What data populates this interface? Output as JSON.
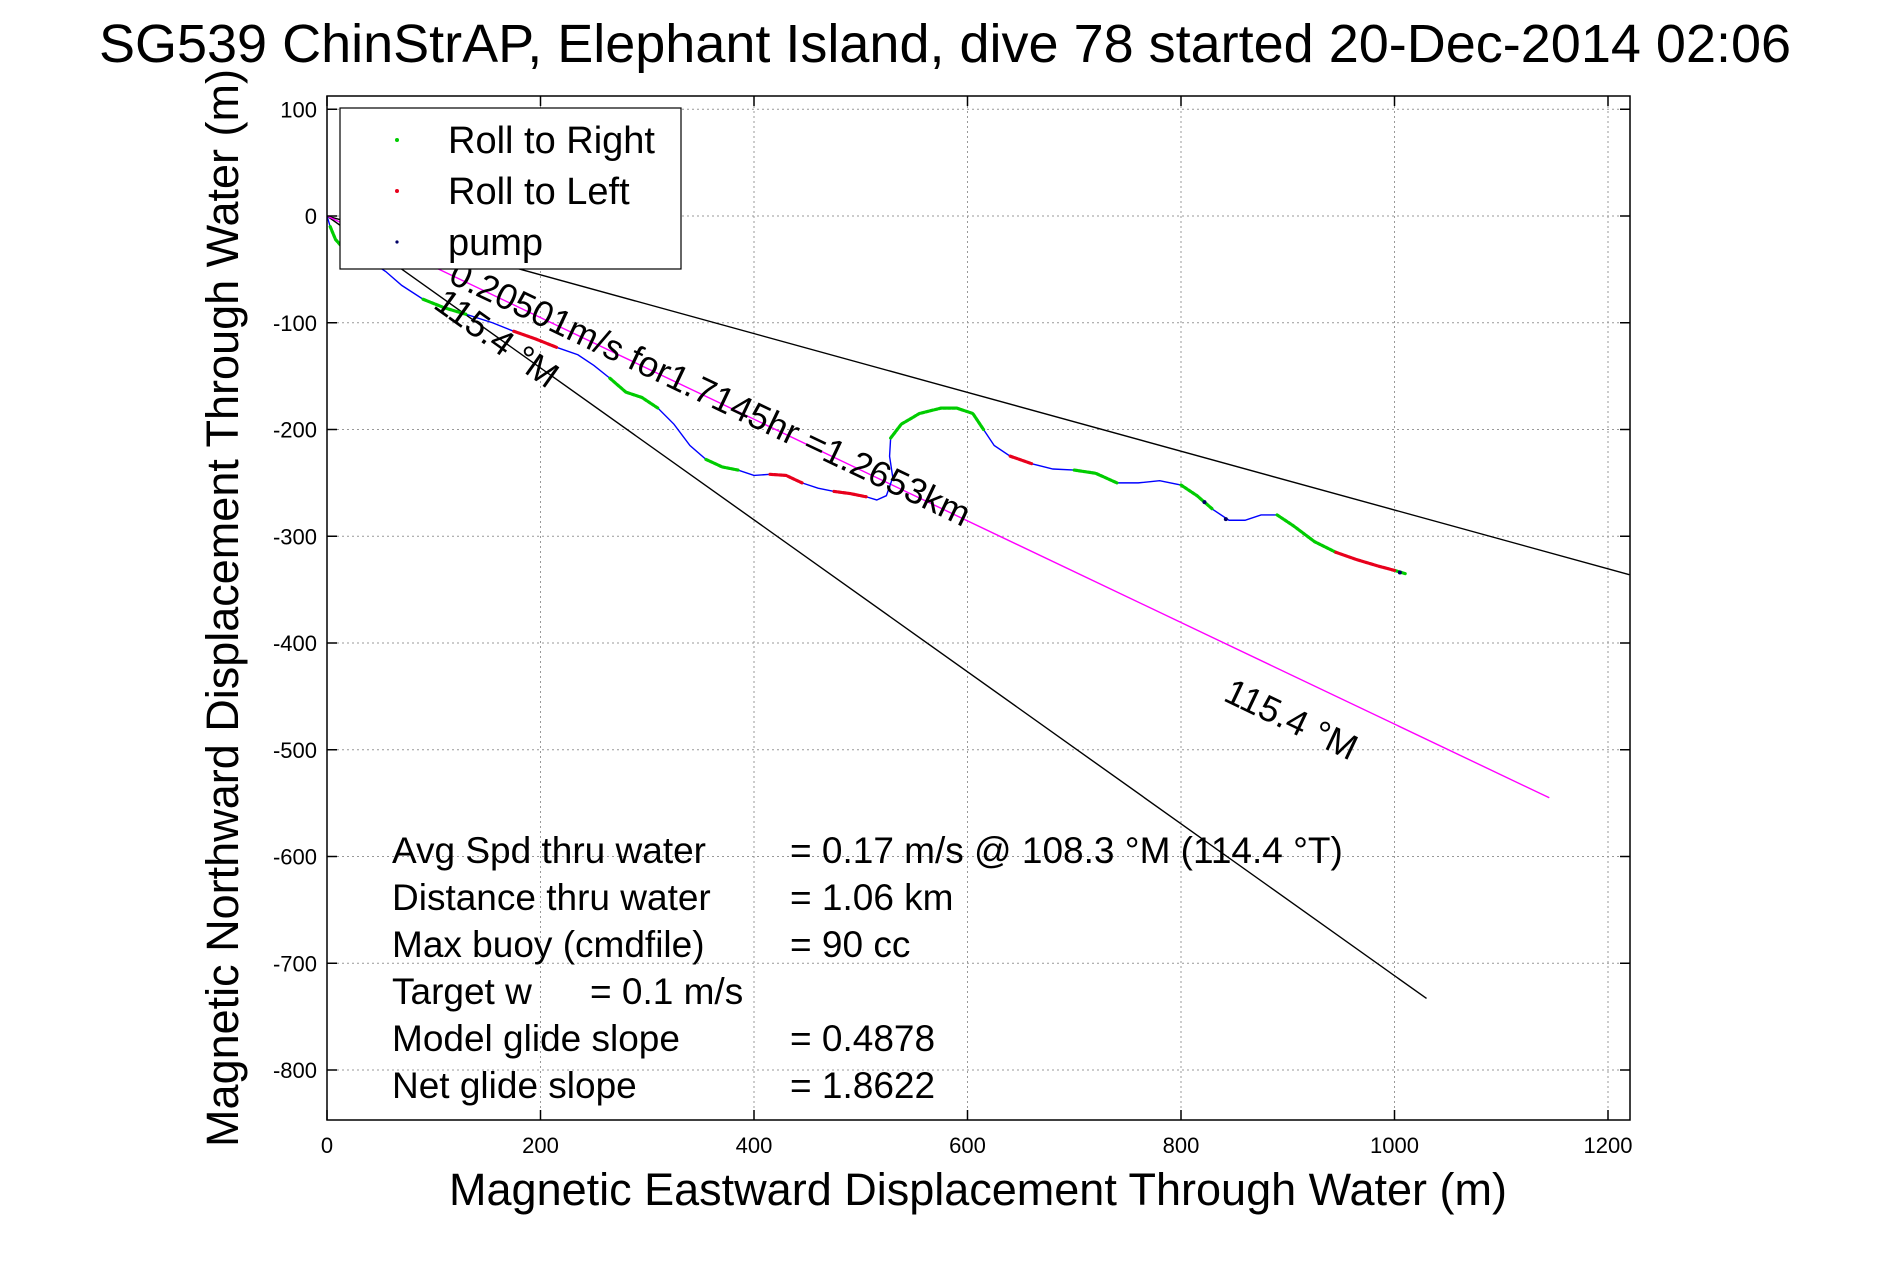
{
  "chart_data": {
    "type": "line",
    "title": "SG539 ChinStrAP, Elephant Island, dive 78 started 20-Dec-2014 02:06",
    "xlabel": "Magnetic Eastward Displacement Through Water (m)",
    "ylabel": "Magnetic Northward Displacement Through Water (m)",
    "xlim": [
      0,
      1220
    ],
    "ylim": [
      -840,
      100
    ],
    "xticks": [
      0,
      200,
      400,
      600,
      800,
      1000,
      1200
    ],
    "yticks": [
      100,
      0,
      -100,
      -200,
      -300,
      -400,
      -500,
      -600,
      -700,
      -800
    ],
    "grid": true,
    "legend_position": "top-left",
    "legend": [
      {
        "label": "Roll to Right",
        "color": "#00cc00"
      },
      {
        "label": "Roll to Left",
        "color": "#e8001c"
      },
      {
        "label": "pump",
        "color": "#000066"
      }
    ],
    "track": {
      "color": "#0000ff",
      "points": [
        [
          0,
          0
        ],
        [
          3,
          -10
        ],
        [
          8,
          -22
        ],
        [
          15,
          -30
        ],
        [
          25,
          -36
        ],
        [
          40,
          -42
        ],
        [
          55,
          -52
        ],
        [
          70,
          -65
        ],
        [
          90,
          -78
        ],
        [
          110,
          -86
        ],
        [
          130,
          -92
        ],
        [
          155,
          -100
        ],
        [
          175,
          -108
        ],
        [
          195,
          -115
        ],
        [
          215,
          -123
        ],
        [
          235,
          -130
        ],
        [
          250,
          -140
        ],
        [
          265,
          -152
        ],
        [
          280,
          -165
        ],
        [
          295,
          -170
        ],
        [
          310,
          -180
        ],
        [
          325,
          -195
        ],
        [
          340,
          -215
        ],
        [
          355,
          -228
        ],
        [
          370,
          -235
        ],
        [
          385,
          -238
        ],
        [
          400,
          -243
        ],
        [
          415,
          -242
        ],
        [
          430,
          -243
        ],
        [
          445,
          -250
        ],
        [
          460,
          -255
        ],
        [
          475,
          -258
        ],
        [
          490,
          -260
        ],
        [
          505,
          -263
        ],
        [
          515,
          -266
        ],
        [
          524,
          -262
        ],
        [
          530,
          -245
        ],
        [
          527,
          -225
        ],
        [
          528,
          -208
        ],
        [
          538,
          -195
        ],
        [
          555,
          -185
        ],
        [
          575,
          -180
        ],
        [
          590,
          -180
        ],
        [
          605,
          -185
        ],
        [
          615,
          -200
        ],
        [
          625,
          -215
        ],
        [
          640,
          -225
        ],
        [
          660,
          -232
        ],
        [
          680,
          -237
        ],
        [
          700,
          -238
        ],
        [
          720,
          -241
        ],
        [
          740,
          -250
        ],
        [
          760,
          -250
        ],
        [
          780,
          -248
        ],
        [
          800,
          -252
        ],
        [
          815,
          -262
        ],
        [
          830,
          -275
        ],
        [
          845,
          -285
        ],
        [
          860,
          -285
        ],
        [
          875,
          -280
        ],
        [
          890,
          -280
        ],
        [
          905,
          -290
        ],
        [
          925,
          -305
        ],
        [
          945,
          -315
        ],
        [
          965,
          -322
        ],
        [
          985,
          -328
        ],
        [
          1000,
          -332
        ],
        [
          1010,
          -335
        ]
      ],
      "right_roll_ranges": [
        [
          1,
          4
        ],
        [
          8,
          10
        ],
        [
          17,
          20
        ],
        [
          23,
          25
        ],
        [
          38,
          44
        ],
        [
          49,
          51
        ],
        [
          54,
          56
        ],
        [
          60,
          63
        ],
        [
          66,
          67
        ]
      ],
      "left_roll_ranges": [
        [
          12,
          14
        ],
        [
          27,
          29
        ],
        [
          31,
          33
        ],
        [
          46,
          47
        ],
        [
          63,
          66
        ]
      ],
      "pump_points": [
        [
          822,
          -268
        ],
        [
          842,
          -284
        ],
        [
          1005,
          -334
        ]
      ]
    },
    "reference_lines": [
      {
        "name": "ref-line-upper",
        "color": "#000000",
        "points": [
          [
            0,
            0
          ],
          [
            1220,
            -336
          ]
        ]
      },
      {
        "name": "ref-line-lower",
        "color": "#000000",
        "points": [
          [
            0,
            0
          ],
          [
            1030,
            -733
          ]
        ]
      },
      {
        "name": "ref-line-heading",
        "color": "#ff00ff",
        "points": [
          [
            0,
            0
          ],
          [
            1145,
            -545
          ]
        ]
      }
    ],
    "annotations": {
      "current": "0.20501m/s for1.7145hr =1.2653km",
      "heading_near": "115.4 °M",
      "heading_far": "115.4 °M"
    },
    "stats": [
      {
        "label": "Avg Spd thru water",
        "value": "=  0.17 m/s @ 108.3 °M (114.4 °T)"
      },
      {
        "label": "Distance thru water",
        "value": "=  1.06 km"
      },
      {
        "label": "Max buoy (cmdfile)",
        "value": "= 90 cc"
      },
      {
        "label": "Target w",
        "value": "= 0.1 m/s"
      },
      {
        "label": "Model glide slope",
        "value": "= 0.4878"
      },
      {
        "label": "Net glide slope",
        "value": "= 1.8622"
      }
    ]
  }
}
